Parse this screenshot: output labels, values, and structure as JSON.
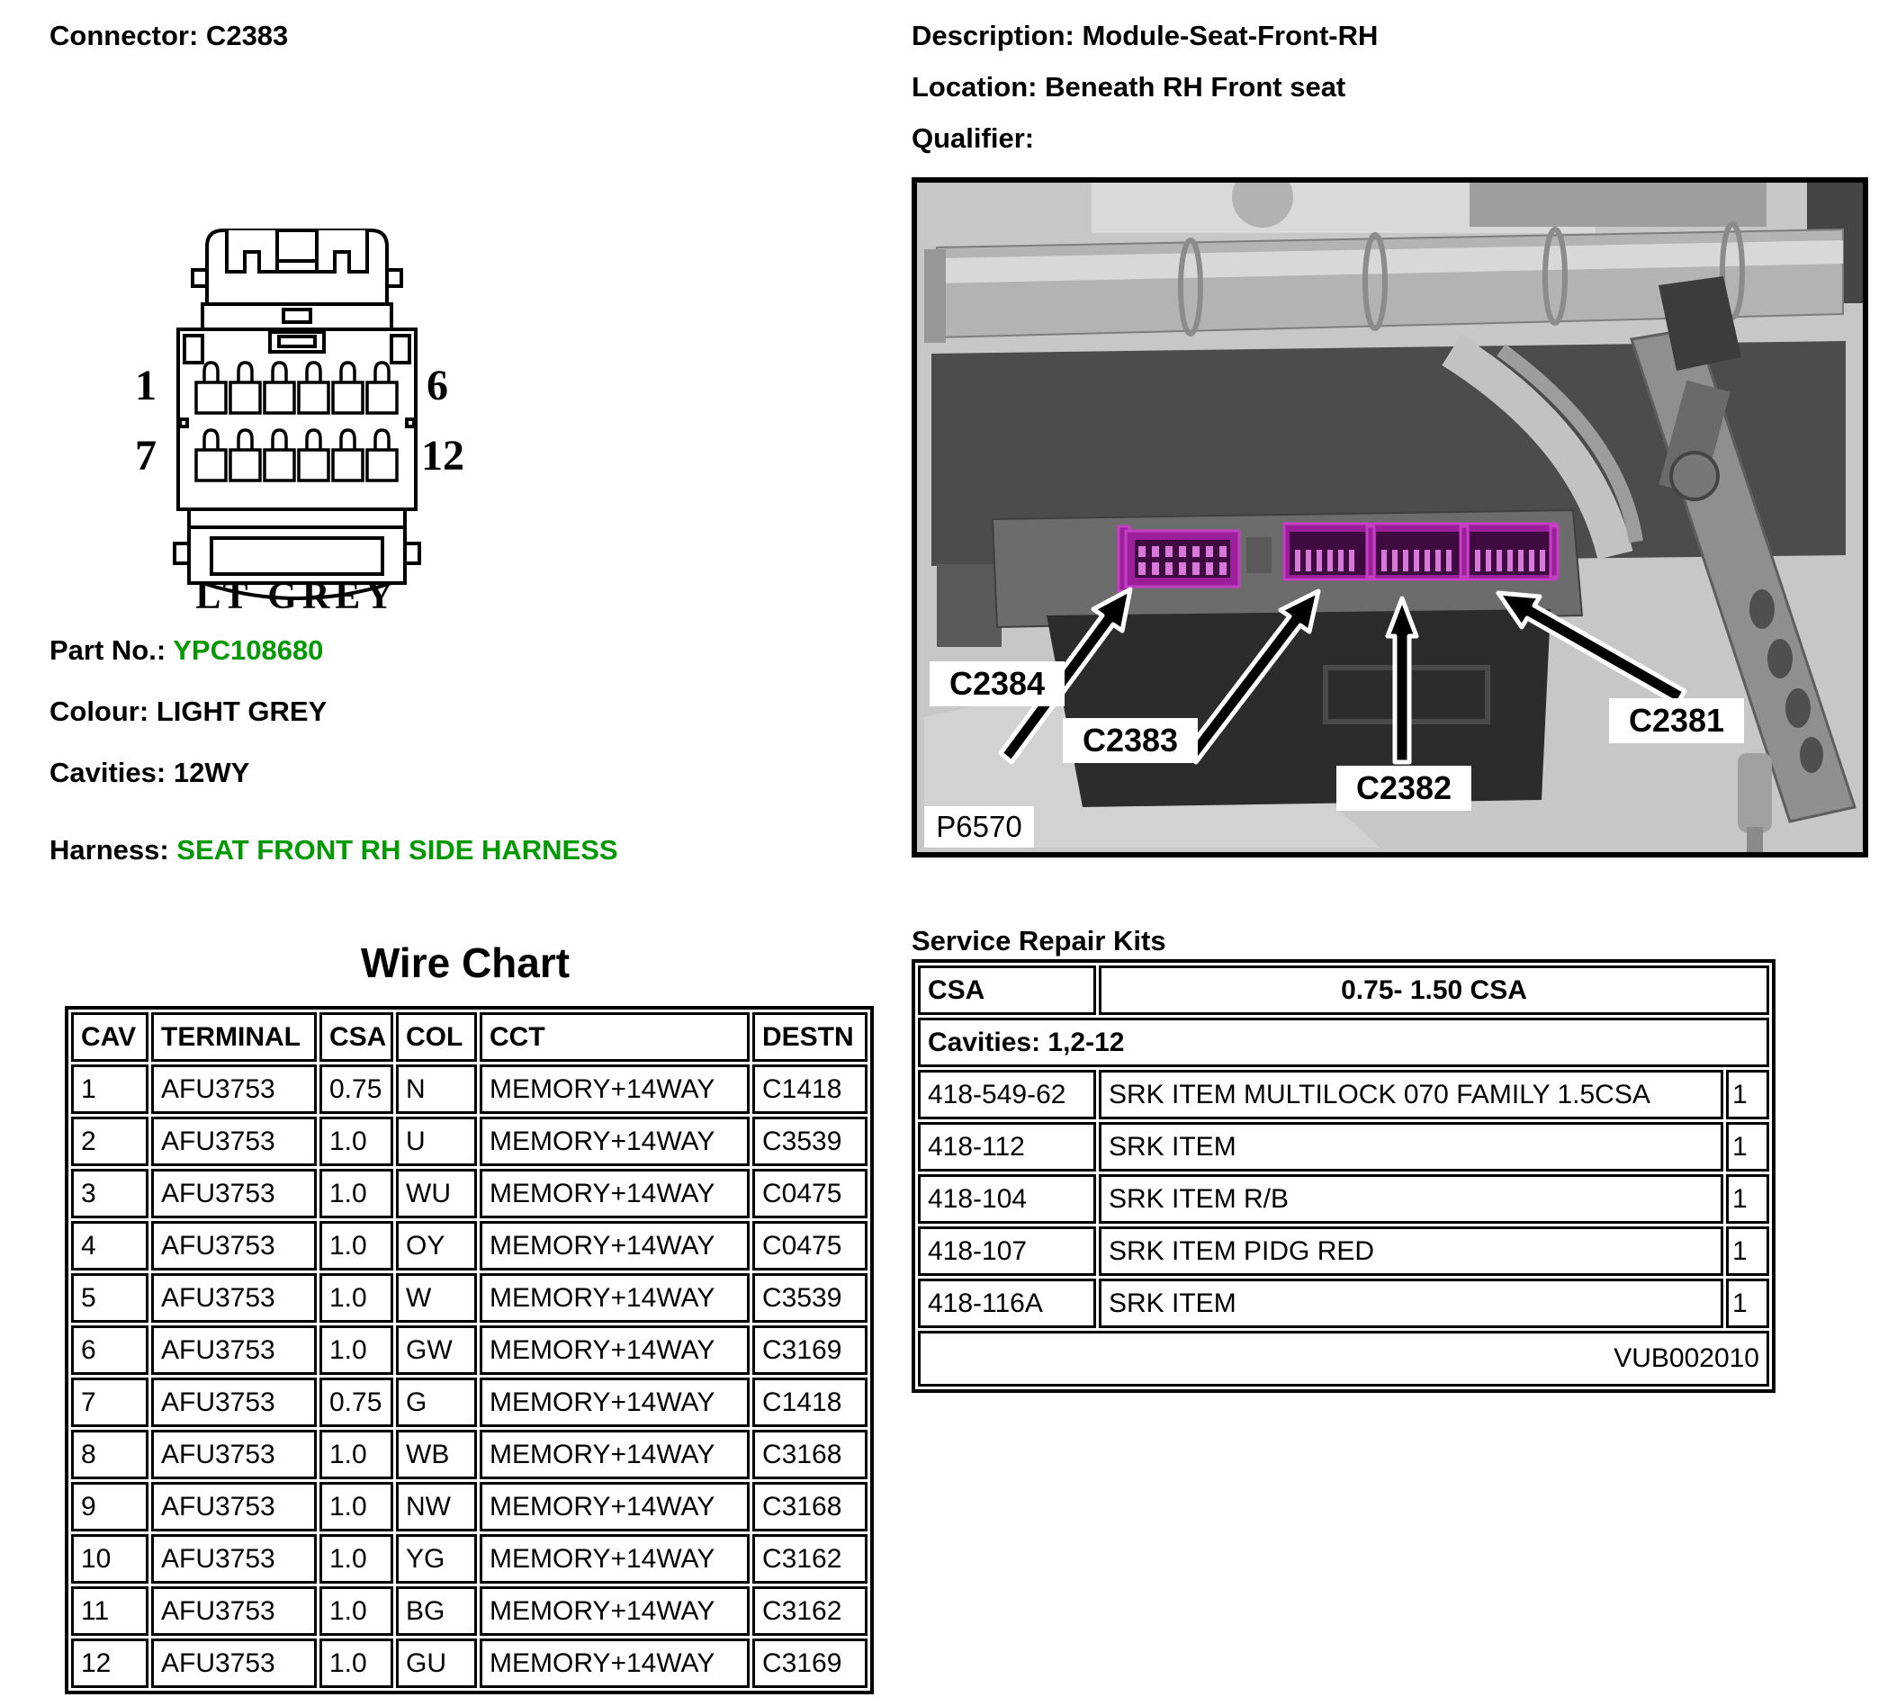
{
  "header_left": {
    "connector": "Connector: C2383"
  },
  "header_right": {
    "description": "Description: Module-Seat-Front-RH",
    "location": "Location: Beneath RH Front seat",
    "qualifier": "Qualifier:"
  },
  "connector_diagram": {
    "pin_top_left": "1",
    "pin_top_right": "6",
    "pin_bottom_left": "7",
    "pin_bottom_right": "12",
    "colour_text": "LT GREY"
  },
  "details": {
    "part_no_label": "Part No.: ",
    "part_no_value": "YPC108680",
    "colour_label": "Colour: ",
    "colour_value": "LIGHT GREY",
    "cavities_label": "Cavities: ",
    "cavities_value": "12WY",
    "harness_label": "Harness: ",
    "harness_value": "SEAT FRONT RH SIDE HARNESS"
  },
  "photo": {
    "connector_labels": [
      "C2384",
      "C2383",
      "C2382",
      "C2381"
    ],
    "figure_id": "P6570"
  },
  "wire_chart": {
    "title": "Wire Chart",
    "columns": [
      "CAV",
      "TERMINAL",
      "CSA",
      "COL",
      "CCT",
      "DESTN"
    ],
    "rows": [
      [
        "1",
        "AFU3753",
        "0.75",
        "N",
        "MEMORY+14WAY",
        "C1418"
      ],
      [
        "2",
        "AFU3753",
        "1.0",
        "U",
        "MEMORY+14WAY",
        "C3539"
      ],
      [
        "3",
        "AFU3753",
        "1.0",
        "WU",
        "MEMORY+14WAY",
        "C0475"
      ],
      [
        "4",
        "AFU3753",
        "1.0",
        "OY",
        "MEMORY+14WAY",
        "C0475"
      ],
      [
        "5",
        "AFU3753",
        "1.0",
        "W",
        "MEMORY+14WAY",
        "C3539"
      ],
      [
        "6",
        "AFU3753",
        "1.0",
        "GW",
        "MEMORY+14WAY",
        "C3169"
      ],
      [
        "7",
        "AFU3753",
        "0.75",
        "G",
        "MEMORY+14WAY",
        "C1418"
      ],
      [
        "8",
        "AFU3753",
        "1.0",
        "WB",
        "MEMORY+14WAY",
        "C3168"
      ],
      [
        "9",
        "AFU3753",
        "1.0",
        "NW",
        "MEMORY+14WAY",
        "C3168"
      ],
      [
        "10",
        "AFU3753",
        "1.0",
        "YG",
        "MEMORY+14WAY",
        "C3162"
      ],
      [
        "11",
        "AFU3753",
        "1.0",
        "BG",
        "MEMORY+14WAY",
        "C3162"
      ],
      [
        "12",
        "AFU3753",
        "1.0",
        "GU",
        "MEMORY+14WAY",
        "C3169"
      ]
    ]
  },
  "service_repair_kits": {
    "title": "Service Repair Kits",
    "csa_header": "CSA",
    "csa_range": "0.75- 1.50 CSA",
    "cavities_row": "Cavities: 1,2-12",
    "rows": [
      {
        "part": "418-549-62",
        "desc": "SRK ITEM MULTILOCK 070 FAMILY 1.5CSA",
        "qty": "1"
      },
      {
        "part": "418-112",
        "desc": "SRK ITEM",
        "qty": "1"
      },
      {
        "part": "418-104",
        "desc": "SRK ITEM R/B",
        "qty": "1"
      },
      {
        "part": "418-107",
        "desc": "SRK ITEM PIDG RED",
        "qty": "1"
      },
      {
        "part": "418-116A",
        "desc": "SRK ITEM",
        "qty": "1"
      }
    ],
    "footer": "VUB002010"
  },
  "colors": {
    "green": "#009900",
    "connector_magenta": "#9b1f9b",
    "connector_magenta_bright": "#c43fc4",
    "connector_magenta_dark": "#3f0a3f",
    "connector_magenta_teeth": "#d878d8"
  }
}
